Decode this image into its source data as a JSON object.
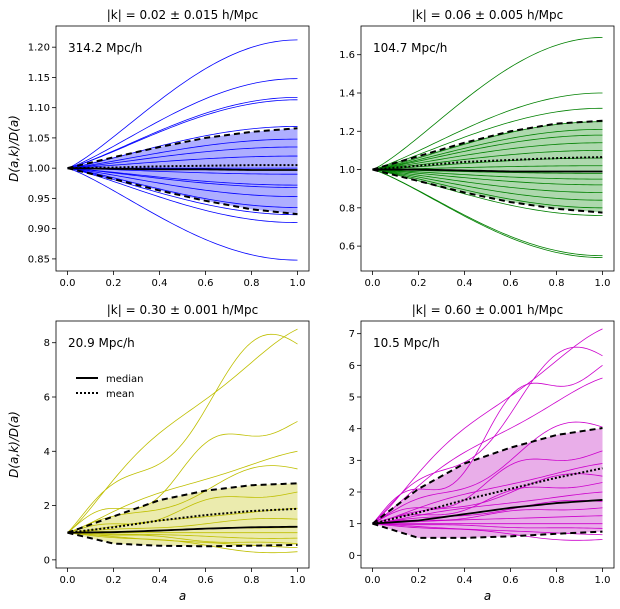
{
  "chart_data": [
    {
      "type": "line",
      "title": "|k| = 0.02 ± 0.015 h/Mpc",
      "scale_label": "314.2 Mpc/h",
      "xlabel": "",
      "ylabel": "D(a,k)/D(a)",
      "xlim": [
        -0.05,
        1.05
      ],
      "ylim": [
        0.83,
        1.235
      ],
      "xticks": [
        "0.0",
        "0.2",
        "0.4",
        "0.6",
        "0.8",
        "1.0"
      ],
      "xtick_values": [
        0,
        0.2,
        0.4,
        0.6,
        0.8,
        1.0
      ],
      "yticks": [
        "0.85",
        "0.90",
        "0.95",
        "1.00",
        "1.05",
        "1.10",
        "1.15",
        "1.20"
      ],
      "ytick_values": [
        0.85,
        0.9,
        0.95,
        1.0,
        1.05,
        1.1,
        1.15,
        1.2
      ],
      "color": "#0000ff",
      "fill": "#aaaaff",
      "band": {
        "x": [
          0,
          0.2,
          0.4,
          0.6,
          0.8,
          1.0
        ],
        "upper": [
          1.0,
          1.018,
          1.035,
          1.05,
          1.06,
          1.066
        ],
        "lower": [
          1.0,
          0.982,
          0.963,
          0.946,
          0.932,
          0.924
        ]
      },
      "median": {
        "x": [
          0,
          0.2,
          0.4,
          0.6,
          0.8,
          1.0
        ],
        "y": [
          1.0,
          0.999,
          0.998,
          0.998,
          0.997,
          0.997
        ]
      },
      "mean": {
        "x": [
          0,
          0.2,
          0.4,
          0.6,
          0.8,
          1.0
        ],
        "y": [
          1.0,
          1.001,
          1.003,
          1.004,
          1.005,
          1.005
        ]
      },
      "end_values": [
        1.212,
        1.148,
        1.117,
        1.113,
        1.069,
        1.048,
        1.035,
        1.02,
        1.0,
        0.99,
        0.972,
        0.968,
        0.953,
        0.935,
        0.923,
        0.91,
        0.848
      ]
    },
    {
      "type": "line",
      "title": "|k| = 0.06 ± 0.005 h/Mpc",
      "scale_label": "104.7 Mpc/h",
      "xlabel": "",
      "ylabel": "",
      "xlim": [
        -0.05,
        1.05
      ],
      "ylim": [
        0.47,
        1.75
      ],
      "xticks": [
        "0.0",
        "0.2",
        "0.4",
        "0.6",
        "0.8",
        "1.0"
      ],
      "xtick_values": [
        0,
        0.2,
        0.4,
        0.6,
        0.8,
        1.0
      ],
      "yticks": [
        "0.6",
        "0.8",
        "1.0",
        "1.2",
        "1.4",
        "1.6"
      ],
      "ytick_values": [
        0.6,
        0.8,
        1.0,
        1.2,
        1.4,
        1.6
      ],
      "color": "#008000",
      "fill": "#aad6aa",
      "band": {
        "x": [
          0,
          0.2,
          0.4,
          0.6,
          0.8,
          1.0
        ],
        "upper": [
          1.0,
          1.07,
          1.14,
          1.2,
          1.24,
          1.255
        ],
        "lower": [
          1.0,
          0.94,
          0.88,
          0.83,
          0.795,
          0.775
        ]
      },
      "median": {
        "x": [
          0,
          0.2,
          0.4,
          0.6,
          0.8,
          1.0
        ],
        "y": [
          1.0,
          1.0,
          0.995,
          0.99,
          0.99,
          0.99
        ]
      },
      "mean": {
        "x": [
          0,
          0.2,
          0.4,
          0.6,
          0.8,
          1.0
        ],
        "y": [
          1.0,
          1.02,
          1.04,
          1.05,
          1.06,
          1.065
        ]
      },
      "end_values": [
        1.69,
        1.4,
        1.32,
        1.25,
        1.21,
        1.18,
        1.14,
        1.1,
        1.06,
        1.02,
        0.98,
        0.95,
        0.92,
        0.88,
        0.84,
        0.8,
        0.76,
        0.55,
        0.54
      ]
    },
    {
      "type": "line",
      "title": "|k| = 0.30 ± 0.001 h/Mpc",
      "scale_label": "20.9 Mpc/h",
      "xlabel": "a",
      "ylabel": "D(a,k)/D(a)",
      "xlim": [
        -0.05,
        1.05
      ],
      "ylim": [
        -0.3,
        8.8
      ],
      "xticks": [
        "0.0",
        "0.2",
        "0.4",
        "0.6",
        "0.8",
        "1.0"
      ],
      "xtick_values": [
        0,
        0.2,
        0.4,
        0.6,
        0.8,
        1.0
      ],
      "yticks": [
        "0",
        "2",
        "4",
        "6",
        "8"
      ],
      "ytick_values": [
        0,
        2,
        4,
        6,
        8
      ],
      "color": "#bfbf00",
      "fill": "#eaeaaa",
      "band": {
        "x": [
          0,
          0.2,
          0.4,
          0.6,
          0.8,
          1.0
        ],
        "upper": [
          1.0,
          1.6,
          2.2,
          2.55,
          2.75,
          2.82
        ],
        "lower": [
          1.0,
          0.6,
          0.52,
          0.5,
          0.52,
          0.55
        ]
      },
      "median": {
        "x": [
          0,
          0.2,
          0.4,
          0.6,
          0.8,
          1.0
        ],
        "y": [
          1.0,
          1.02,
          1.08,
          1.15,
          1.2,
          1.22
        ]
      },
      "mean": {
        "x": [
          0,
          0.2,
          0.4,
          0.6,
          0.8,
          1.0
        ],
        "y": [
          1.0,
          1.2,
          1.45,
          1.65,
          1.8,
          1.88
        ]
      },
      "end_values": [
        8.5,
        7.95,
        5.1,
        4.0,
        3.35,
        2.5,
        1.9,
        1.5,
        1.2,
        1.0,
        0.8,
        0.6,
        0.45,
        0.3
      ],
      "legend": {
        "position": "upper-left",
        "entries": [
          "median",
          "mean"
        ]
      }
    },
    {
      "type": "line",
      "title": "|k| = 0.60 ± 0.001 h/Mpc",
      "scale_label": "10.5 Mpc/h",
      "xlabel": "a",
      "ylabel": "",
      "xlim": [
        -0.05,
        1.05
      ],
      "ylim": [
        -0.4,
        7.4
      ],
      "xticks": [
        "0.0",
        "0.2",
        "0.4",
        "0.6",
        "0.8",
        "1.0"
      ],
      "xtick_values": [
        0,
        0.2,
        0.4,
        0.6,
        0.8,
        1.0
      ],
      "yticks": [
        "0",
        "1",
        "2",
        "3",
        "4",
        "5",
        "6",
        "7"
      ],
      "ytick_values": [
        0,
        1,
        2,
        3,
        4,
        5,
        6,
        7
      ],
      "color": "#cc00cc",
      "fill": "#e8aae8",
      "band": {
        "x": [
          0,
          0.2,
          0.4,
          0.6,
          0.8,
          1.0
        ],
        "upper": [
          1.0,
          2.1,
          2.9,
          3.4,
          3.8,
          4.02
        ],
        "lower": [
          1.0,
          0.55,
          0.55,
          0.6,
          0.68,
          0.75
        ]
      },
      "median": {
        "x": [
          0,
          0.2,
          0.4,
          0.6,
          0.8,
          1.0
        ],
        "y": [
          1.0,
          1.1,
          1.3,
          1.5,
          1.65,
          1.75
        ]
      },
      "mean": {
        "x": [
          0,
          0.2,
          0.4,
          0.6,
          0.8,
          1.0
        ],
        "y": [
          1.0,
          1.35,
          1.75,
          2.1,
          2.45,
          2.75
        ]
      },
      "end_values": [
        7.15,
        6.3,
        6.0,
        5.6,
        4.05,
        3.3,
        2.9,
        2.5,
        2.3,
        2.0,
        1.7,
        1.5,
        1.25,
        1.0,
        0.85,
        0.65,
        0.5
      ]
    }
  ]
}
